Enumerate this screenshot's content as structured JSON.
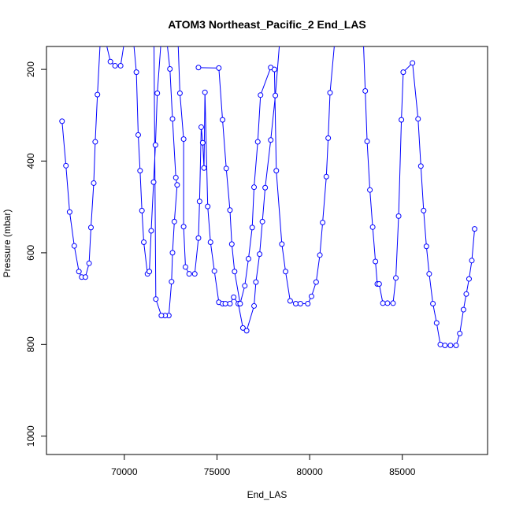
{
  "chart_data": {
    "type": "line",
    "title": "ATOM3 Northeast_Pacific_2 End_LAS",
    "xlabel": "End_LAS",
    "ylabel": "Pressure (mbar)",
    "xlim": [
      65800,
      89600
    ],
    "ylim": [
      1040,
      150
    ],
    "y_reversed": true,
    "x_ticks": [
      70000,
      75000,
      80000,
      85000
    ],
    "x_tick_labels": [
      "70000",
      "75000",
      "80000",
      "85000"
    ],
    "y_ticks": [
      200,
      400,
      600,
      800,
      1000
    ],
    "y_tick_labels": [
      "200",
      "400",
      "600",
      "800",
      "1000"
    ],
    "grid": false,
    "series": [
      {
        "color": "#0000ff",
        "marker": "open-circle",
        "points": [
          [
            66640,
            313
          ],
          [
            66850,
            410
          ],
          [
            67050,
            511
          ],
          [
            67300,
            585
          ],
          [
            67550,
            641
          ],
          [
            67700,
            653
          ],
          [
            67900,
            653
          ],
          [
            68100,
            623
          ],
          [
            68200,
            545
          ],
          [
            68350,
            448
          ],
          [
            68430,
            358
          ],
          [
            68550,
            255
          ],
          [
            68700,
            140
          ],
          [
            69000,
            140
          ],
          [
            69250,
            183
          ],
          [
            69500,
            192
          ],
          [
            69800,
            192
          ],
          [
            70000,
            140
          ],
          [
            70500,
            140
          ],
          [
            70650,
            206
          ],
          [
            70750,
            343
          ],
          [
            70850,
            421
          ],
          [
            70950,
            508
          ],
          [
            71050,
            577
          ],
          [
            71250,
            646
          ],
          [
            71350,
            641
          ],
          [
            71450,
            552
          ],
          [
            71580,
            446
          ],
          [
            71680,
            365
          ],
          [
            71780,
            252
          ],
          [
            71980,
            140
          ],
          [
            72300,
            140
          ],
          [
            72460,
            199
          ],
          [
            72600,
            308
          ],
          [
            72780,
            436
          ],
          [
            72850,
            452
          ],
          [
            72700,
            532
          ],
          [
            72600,
            600
          ],
          [
            72550,
            663
          ],
          [
            72400,
            737
          ],
          [
            72200,
            737
          ],
          [
            72000,
            737
          ],
          [
            71700,
            701
          ],
          [
            71600,
            140
          ],
          [
            72900,
            140
          ],
          [
            73000,
            252
          ],
          [
            73200,
            352
          ],
          [
            73200,
            543
          ],
          [
            73300,
            631
          ],
          [
            73500,
            646
          ],
          [
            73800,
            646
          ],
          [
            74000,
            568
          ],
          [
            74060,
            488
          ],
          [
            74150,
            326
          ],
          [
            74230,
            360
          ],
          [
            74300,
            415
          ],
          [
            74350,
            250
          ],
          [
            74500,
            499
          ],
          [
            74650,
            577
          ],
          [
            74860,
            640
          ],
          [
            75100,
            708
          ],
          [
            75300,
            711
          ],
          [
            75450,
            711
          ],
          [
            75700,
            711
          ],
          [
            75900,
            697
          ],
          [
            76150,
            711
          ],
          [
            76400,
            764
          ],
          [
            76600,
            770
          ],
          [
            77000,
            716
          ],
          [
            77100,
            664
          ],
          [
            77300,
            603
          ],
          [
            77450,
            532
          ],
          [
            77600,
            458
          ],
          [
            77900,
            354
          ],
          [
            78150,
            257
          ],
          [
            78400,
            130
          ]
        ],
        "extra_points": [
          [
            74000,
            196
          ],
          [
            75100,
            197
          ],
          [
            75300,
            310
          ],
          [
            75500,
            416
          ],
          [
            75700,
            507
          ],
          [
            75800,
            581
          ],
          [
            75950,
            641
          ],
          [
            76250,
            711
          ],
          [
            76500,
            672
          ],
          [
            76700,
            613
          ],
          [
            76900,
            545
          ],
          [
            77000,
            457
          ],
          [
            77200,
            358
          ],
          [
            77350,
            256
          ],
          [
            77900,
            196
          ],
          [
            78100,
            200
          ],
          [
            78200,
            421
          ],
          [
            78500,
            581
          ],
          [
            78700,
            641
          ],
          [
            78950,
            705
          ],
          [
            79250,
            711
          ],
          [
            79500,
            711
          ],
          [
            79900,
            711
          ],
          [
            80100,
            695
          ],
          [
            80350,
            664
          ],
          [
            80550,
            605
          ],
          [
            80700,
            534
          ],
          [
            80900,
            434
          ],
          [
            81000,
            350
          ],
          [
            81100,
            251
          ],
          [
            81350,
            140
          ],
          [
            82900,
            140
          ],
          [
            83000,
            247
          ],
          [
            83100,
            357
          ],
          [
            83250,
            463
          ],
          [
            83400,
            544
          ],
          [
            83550,
            619
          ],
          [
            83650,
            668
          ],
          [
            83750,
            668
          ],
          [
            83950,
            710
          ],
          [
            84200,
            710
          ],
          [
            84500,
            710
          ],
          [
            84650,
            655
          ],
          [
            84800,
            520
          ],
          [
            84950,
            310
          ],
          [
            85050,
            206
          ],
          [
            85550,
            186
          ],
          [
            85850,
            308
          ],
          [
            86000,
            411
          ],
          [
            86150,
            508
          ],
          [
            86300,
            586
          ],
          [
            86450,
            646
          ],
          [
            86650,
            711
          ],
          [
            86850,
            753
          ],
          [
            87050,
            800
          ],
          [
            87300,
            802
          ],
          [
            87600,
            802
          ],
          [
            87900,
            802
          ],
          [
            88100,
            776
          ],
          [
            88300,
            724
          ],
          [
            88450,
            690
          ],
          [
            88600,
            657
          ],
          [
            88750,
            617
          ],
          [
            88900,
            548
          ]
        ]
      }
    ]
  }
}
